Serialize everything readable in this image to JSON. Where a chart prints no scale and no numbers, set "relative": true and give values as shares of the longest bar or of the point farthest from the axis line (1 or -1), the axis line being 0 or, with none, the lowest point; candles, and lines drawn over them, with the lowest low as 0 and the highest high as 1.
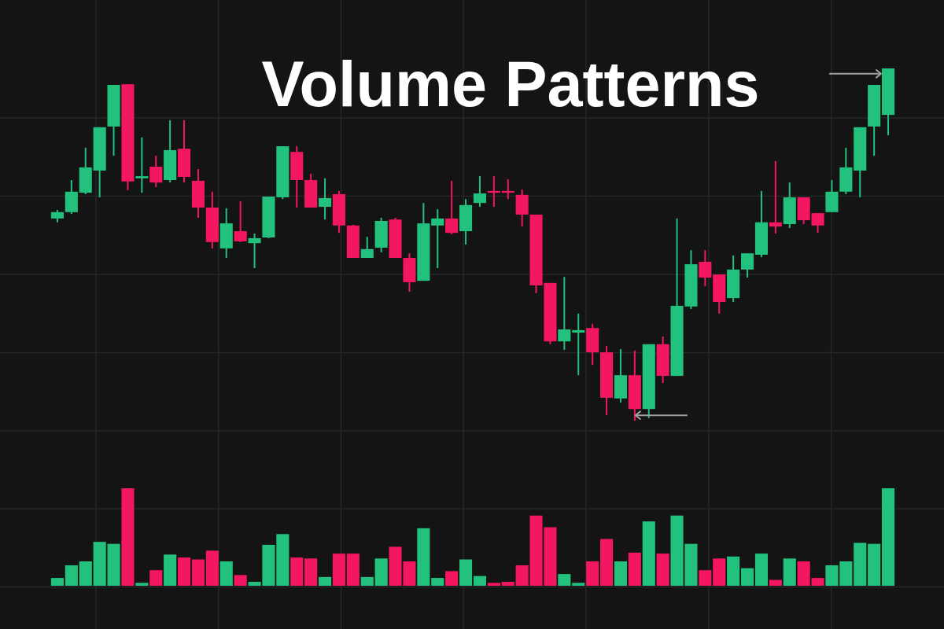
{
  "chart_data": [
    {
      "type": "candlestick",
      "title": "Volume Patterns",
      "relative": true,
      "grid": true,
      "categories": [
        null,
        null,
        null,
        null,
        null,
        null,
        null,
        null,
        null,
        null,
        null,
        null,
        null,
        null,
        null,
        null,
        null,
        null,
        null,
        null,
        null,
        null,
        null,
        null,
        null,
        null,
        null,
        null,
        null,
        null,
        null,
        null,
        null,
        null,
        null,
        null,
        null,
        null,
        null,
        null,
        null,
        null,
        null,
        null,
        null,
        null,
        null,
        null,
        null,
        null,
        null,
        null,
        null,
        null,
        null,
        null,
        null,
        null,
        null,
        null
      ],
      "ohlc": [
        [
          0.574,
          0.598,
          0.563,
          0.592
        ],
        [
          0.592,
          0.683,
          0.587,
          0.65
        ],
        [
          0.647,
          0.775,
          0.643,
          0.719
        ],
        [
          0.71,
          0.833,
          0.634,
          0.833
        ],
        [
          0.835,
          0.953,
          0.752,
          0.953
        ],
        [
          0.955,
          0.955,
          0.654,
          0.679
        ],
        [
          0.688,
          0.804,
          0.647,
          0.694
        ],
        [
          0.721,
          0.752,
          0.663,
          0.676
        ],
        [
          0.683,
          0.853,
          0.676,
          0.768
        ],
        [
          0.772,
          0.853,
          0.676,
          0.692
        ],
        [
          0.681,
          0.714,
          0.576,
          0.605
        ],
        [
          0.605,
          0.65,
          0.489,
          0.507
        ],
        [
          0.489,
          0.603,
          0.462,
          0.56
        ],
        [
          0.538,
          0.623,
          0.507,
          0.509
        ],
        [
          0.504,
          0.531,
          0.433,
          0.518
        ],
        [
          0.52,
          0.636,
          0.518,
          0.636
        ],
        [
          0.634,
          0.779,
          0.629,
          0.779
        ],
        [
          0.763,
          0.779,
          0.605,
          0.683
        ],
        [
          0.683,
          0.701,
          0.605,
          0.605
        ],
        [
          0.607,
          0.688,
          0.571,
          0.632
        ],
        [
          0.643,
          0.652,
          0.533,
          0.554
        ],
        [
          0.554,
          0.556,
          0.462,
          0.462
        ],
        [
          0.462,
          0.522,
          0.462,
          0.487
        ],
        [
          0.491,
          0.576,
          0.478,
          0.567
        ],
        [
          0.571,
          0.576,
          0.462,
          0.462
        ],
        [
          0.462,
          0.475,
          0.366,
          0.393
        ],
        [
          0.397,
          0.618,
          0.397,
          0.56
        ],
        [
          0.554,
          0.6,
          0.433,
          0.574
        ],
        [
          0.574,
          0.681,
          0.529,
          0.533
        ],
        [
          0.538,
          0.629,
          0.5,
          0.612
        ],
        [
          0.618,
          0.694,
          0.607,
          0.645
        ],
        [
          0.652,
          0.694,
          0.607,
          0.647
        ],
        [
          0.652,
          0.685,
          0.629,
          0.647
        ],
        [
          0.641,
          0.656,
          0.551,
          0.585
        ],
        [
          0.585,
          0.585,
          0.362,
          0.384
        ],
        [
          0.391,
          0.391,
          0.217,
          0.225
        ],
        [
          0.225,
          0.408,
          0.201,
          0.259
        ],
        [
          0.25,
          0.304,
          0.129,
          0.257
        ],
        [
          0.263,
          0.275,
          0.158,
          0.194
        ],
        [
          0.194,
          0.212,
          0.016,
          0.065
        ],
        [
          0.063,
          0.203,
          0.051,
          0.129
        ],
        [
          0.129,
          0.199,
          0,
          0.033
        ],
        [
          0.033,
          0.217,
          0.007,
          0.217
        ],
        [
          0.217,
          0.239,
          0.107,
          0.127
        ],
        [
          0.127,
          0.574,
          0.127,
          0.326
        ],
        [
          0.324,
          0.484,
          0.317,
          0.444
        ],
        [
          0.451,
          0.484,
          0.382,
          0.406
        ],
        [
          0.415,
          0.415,
          0.304,
          0.337
        ],
        [
          0.348,
          0.469,
          0.337,
          0.429
        ],
        [
          0.429,
          0.475,
          0.406,
          0.475
        ],
        [
          0.471,
          0.652,
          0.464,
          0.563
        ],
        [
          0.563,
          0.737,
          0.531,
          0.551
        ],
        [
          0.558,
          0.676,
          0.547,
          0.634
        ],
        [
          0.634,
          0.634,
          0.558,
          0.569
        ],
        [
          0.589,
          0.589,
          0.533,
          0.554
        ],
        [
          0.592,
          0.683,
          0.592,
          0.65
        ],
        [
          0.65,
          0.775,
          0.643,
          0.719
        ],
        [
          0.71,
          0.833,
          0.634,
          0.833
        ],
        [
          0.835,
          0.953,
          0.752,
          0.953
        ],
        [
          0.868,
          1,
          0.81,
          1
        ]
      ],
      "colors": [
        "#22c27e",
        "#22c27e",
        "#22c27e",
        "#22c27e",
        "#22c27e",
        "#f31660",
        "#22c27e",
        "#f31660",
        "#22c27e",
        "#f31660",
        "#f31660",
        "#f31660",
        "#22c27e",
        "#f31660",
        "#22c27e",
        "#22c27e",
        "#22c27e",
        "#f31660",
        "#f31660",
        "#22c27e",
        "#f31660",
        "#f31660",
        "#22c27e",
        "#22c27e",
        "#f31660",
        "#f31660",
        "#22c27e",
        "#22c27e",
        "#f31660",
        "#22c27e",
        "#22c27e",
        "#f31660",
        "#f31660",
        "#f31660",
        "#f31660",
        "#f31660",
        "#22c27e",
        "#22c27e",
        "#f31660",
        "#f31660",
        "#22c27e",
        "#f31660",
        "#22c27e",
        "#f31660",
        "#22c27e",
        "#22c27e",
        "#f31660",
        "#f31660",
        "#22c27e",
        "#22c27e",
        "#22c27e",
        "#f31660",
        "#22c27e",
        "#f31660",
        "#f31660",
        "#22c27e",
        "#22c27e",
        "#22c27e",
        "#22c27e",
        "#22c27e"
      ]
    },
    {
      "type": "bar",
      "relative": true,
      "grid": true,
      "categories": [
        null,
        null,
        null,
        null,
        null,
        null,
        null,
        null,
        null,
        null,
        null,
        null,
        null,
        null,
        null,
        null,
        null,
        null,
        null,
        null,
        null,
        null,
        null,
        null,
        null,
        null,
        null,
        null,
        null,
        null,
        null,
        null,
        null,
        null,
        null,
        null,
        null,
        null,
        null,
        null,
        null,
        null,
        null,
        null,
        null,
        null,
        null,
        null,
        null,
        null,
        null,
        null,
        null,
        null,
        null,
        null,
        null,
        null,
        null,
        null
      ],
      "values": [
        0.08,
        0.21,
        0.25,
        0.45,
        0.43,
        1,
        0.03,
        0.16,
        0.32,
        0.29,
        0.27,
        0.36,
        0.25,
        0.11,
        0.04,
        0.42,
        0.53,
        0.29,
        0.28,
        0.09,
        0.33,
        0.33,
        0.09,
        0.28,
        0.4,
        0.25,
        0.59,
        0.08,
        0.15,
        0.27,
        0.1,
        0.03,
        0.04,
        0.21,
        0.72,
        0.6,
        0.12,
        0.03,
        0.25,
        0.48,
        0.25,
        0.34,
        0.66,
        0.33,
        0.72,
        0.43,
        0.16,
        0.28,
        0.3,
        0.18,
        0.33,
        0.06,
        0.28,
        0.25,
        0.08,
        0.21,
        0.25,
        0.44,
        0.43,
        1
      ],
      "colors": [
        "#22c27e",
        "#22c27e",
        "#22c27e",
        "#22c27e",
        "#22c27e",
        "#f31660",
        "#22c27e",
        "#f31660",
        "#22c27e",
        "#f31660",
        "#f31660",
        "#f31660",
        "#22c27e",
        "#f31660",
        "#22c27e",
        "#22c27e",
        "#22c27e",
        "#f31660",
        "#f31660",
        "#22c27e",
        "#f31660",
        "#f31660",
        "#22c27e",
        "#22c27e",
        "#f31660",
        "#f31660",
        "#22c27e",
        "#22c27e",
        "#f31660",
        "#22c27e",
        "#22c27e",
        "#f31660",
        "#f31660",
        "#f31660",
        "#f31660",
        "#f31660",
        "#22c27e",
        "#22c27e",
        "#f31660",
        "#f31660",
        "#22c27e",
        "#f31660",
        "#22c27e",
        "#f31660",
        "#22c27e",
        "#22c27e",
        "#f31660",
        "#f31660",
        "#22c27e",
        "#22c27e",
        "#22c27e",
        "#f31660",
        "#22c27e",
        "#f31660",
        "#f31660",
        "#22c27e",
        "#22c27e",
        "#22c27e",
        "#22c27e",
        "#22c27e"
      ]
    }
  ]
}
